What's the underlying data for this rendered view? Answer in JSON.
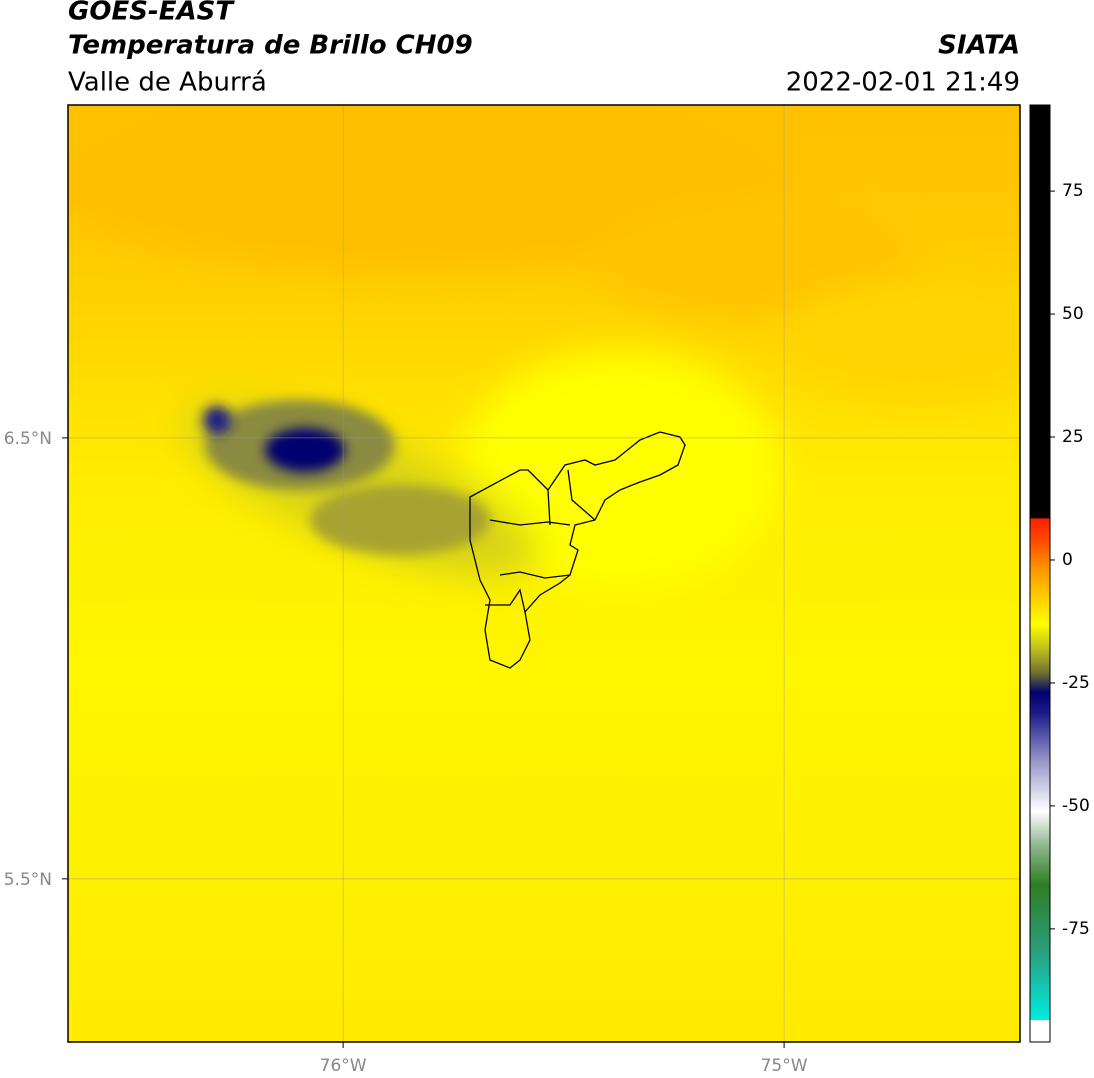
{
  "header": {
    "title": "GOES-EAST",
    "subtitle": "Temperatura de Brillo CH09",
    "region": "Valle de Aburrá",
    "source": "SIATA",
    "datetime": "2022-02-01 21:49"
  },
  "map": {
    "xlim": [
      -76.624,
      -74.465
    ],
    "ylim": [
      5.13,
      7.255
    ],
    "xticks": [
      {
        "value": -76,
        "label": "76°W"
      },
      {
        "value": -75,
        "label": "75°W"
      }
    ],
    "yticks": [
      {
        "value": 6.5,
        "label": "6.5°N"
      },
      {
        "value": 5.5,
        "label": "5.5°N"
      }
    ]
  },
  "colorbar": {
    "lim": [
      -98,
      92.5
    ],
    "ticks": [
      75,
      50,
      25,
      0,
      -25,
      -50,
      -75
    ],
    "stops": [
      {
        "value": -98,
        "color": "#ffffff"
      },
      {
        "value": -93.6,
        "color": "#ffffff"
      },
      {
        "value": -93.5,
        "color": "#00ece0"
      },
      {
        "value": -80,
        "color": "#2aa080"
      },
      {
        "value": -66,
        "color": "#2e7d22"
      },
      {
        "value": -58,
        "color": "#90b890"
      },
      {
        "value": -51,
        "color": "#ffffff"
      },
      {
        "value": -41,
        "color": "#9898c8"
      },
      {
        "value": -31,
        "color": "#1a1a88"
      },
      {
        "value": -27,
        "color": "#000070"
      },
      {
        "value": -23,
        "color": "#707030"
      },
      {
        "value": -18,
        "color": "#c0c020"
      },
      {
        "value": -13,
        "color": "#ffff00"
      },
      {
        "value": -8,
        "color": "#ffd000"
      },
      {
        "value": -2,
        "color": "#ff9800"
      },
      {
        "value": 4,
        "color": "#ff4a00"
      },
      {
        "value": 8.4,
        "color": "#ff2000"
      },
      {
        "value": 8.5,
        "color": "#000000"
      },
      {
        "value": 92.5,
        "color": "#000000"
      }
    ]
  }
}
